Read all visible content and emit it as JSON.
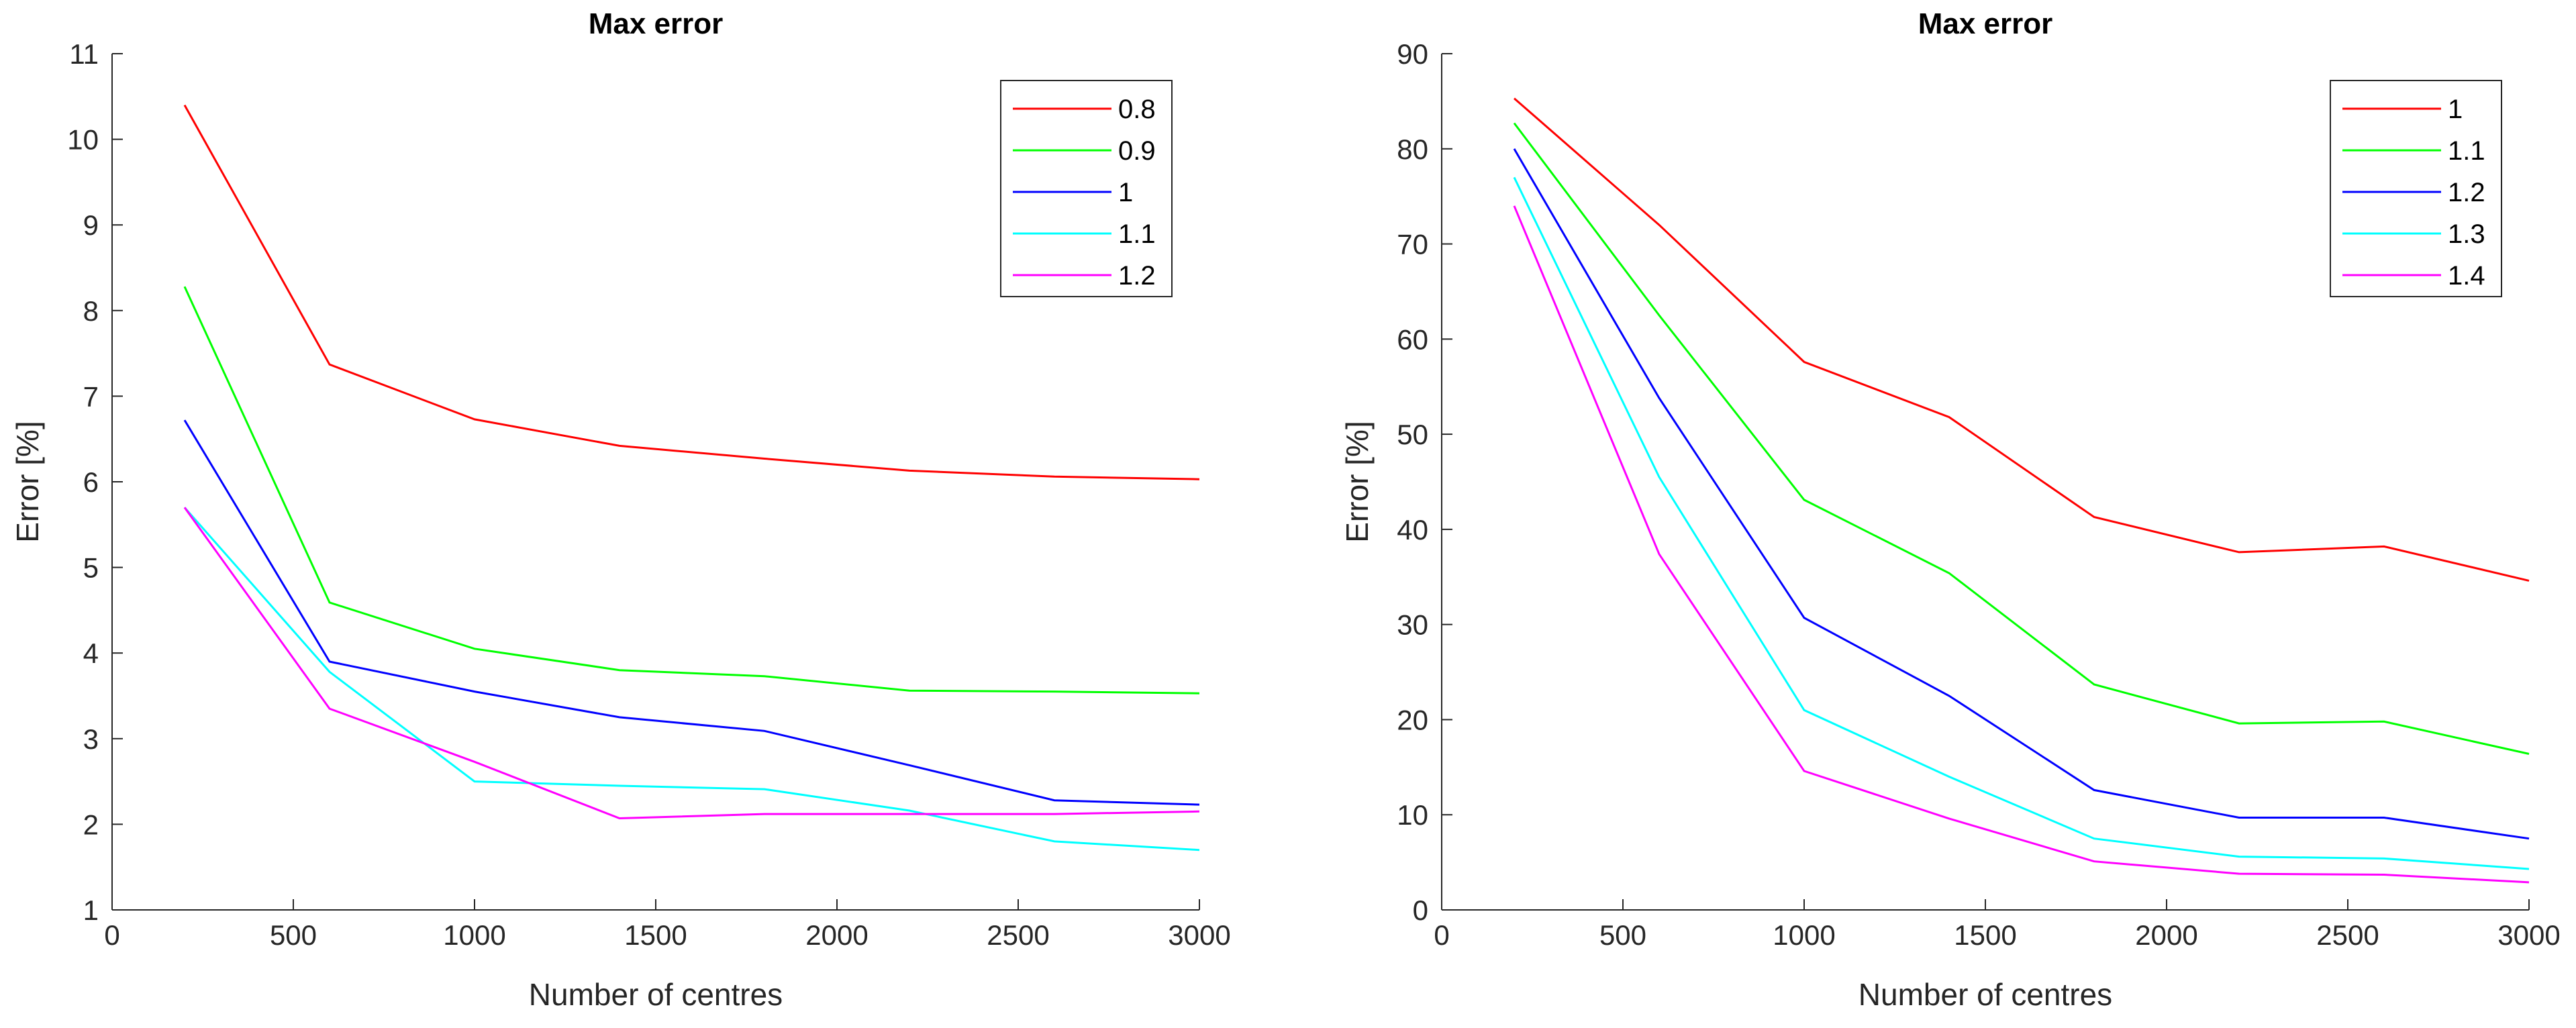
{
  "chart_data": [
    {
      "type": "line",
      "title": "Max error",
      "xlabel": "Number of centres",
      "ylabel": "Error [%]",
      "xlim": [
        0,
        3000
      ],
      "ylim": [
        1,
        11
      ],
      "xticks": [
        0,
        500,
        1000,
        1500,
        2000,
        2500,
        3000
      ],
      "yticks": [
        1,
        2,
        3,
        4,
        5,
        6,
        7,
        8,
        9,
        10,
        11
      ],
      "grid": false,
      "legend_position": "top-right",
      "x": [
        200,
        600,
        1000,
        1400,
        1800,
        2200,
        2600,
        3000
      ],
      "series": [
        {
          "name": "0.8",
          "color": "#ff0000",
          "values": [
            10.4,
            7.37,
            6.73,
            6.42,
            6.27,
            6.13,
            6.06,
            6.03
          ]
        },
        {
          "name": "0.9",
          "color": "#00ff00",
          "values": [
            8.28,
            4.59,
            4.05,
            3.8,
            3.73,
            3.56,
            3.55,
            3.53
          ]
        },
        {
          "name": "1",
          "color": "#0000ff",
          "values": [
            6.72,
            3.9,
            3.55,
            3.25,
            3.09,
            2.69,
            2.28,
            2.23
          ]
        },
        {
          "name": "1.1",
          "color": "#00ffff",
          "values": [
            5.7,
            3.78,
            2.5,
            2.45,
            2.41,
            2.16,
            1.8,
            1.7
          ]
        },
        {
          "name": "1.2",
          "color": "#ff00ff",
          "values": [
            5.7,
            3.35,
            2.73,
            2.07,
            2.12,
            2.12,
            2.12,
            2.15
          ]
        }
      ]
    },
    {
      "type": "line",
      "title": "Max error",
      "xlabel": "Number of centres",
      "ylabel": "Error [%]",
      "xlim": [
        0,
        3000
      ],
      "ylim": [
        0,
        90
      ],
      "xticks": [
        0,
        500,
        1000,
        1500,
        2000,
        2500,
        3000
      ],
      "yticks": [
        0,
        10,
        20,
        30,
        40,
        50,
        60,
        70,
        80,
        90
      ],
      "grid": false,
      "legend_position": "top-right",
      "x": [
        200,
        600,
        1000,
        1400,
        1800,
        2200,
        2600,
        3000
      ],
      "series": [
        {
          "name": "1",
          "color": "#ff0000",
          "values": [
            85.3,
            72.0,
            57.6,
            51.8,
            41.3,
            37.6,
            38.2,
            34.6
          ]
        },
        {
          "name": "1.1",
          "color": "#00ff00",
          "values": [
            82.7,
            62.5,
            43.1,
            35.4,
            23.7,
            19.6,
            19.8,
            16.4
          ]
        },
        {
          "name": "1.2",
          "color": "#0000ff",
          "values": [
            80.0,
            53.8,
            30.7,
            22.5,
            12.6,
            9.7,
            9.7,
            7.5
          ]
        },
        {
          "name": "1.3",
          "color": "#00ffff",
          "values": [
            77.0,
            45.5,
            21.0,
            14.0,
            7.5,
            5.6,
            5.4,
            4.3
          ]
        },
        {
          "name": "1.4",
          "color": "#ff00ff",
          "values": [
            74.0,
            37.4,
            14.6,
            9.6,
            5.1,
            3.8,
            3.7,
            2.9
          ]
        }
      ]
    }
  ]
}
